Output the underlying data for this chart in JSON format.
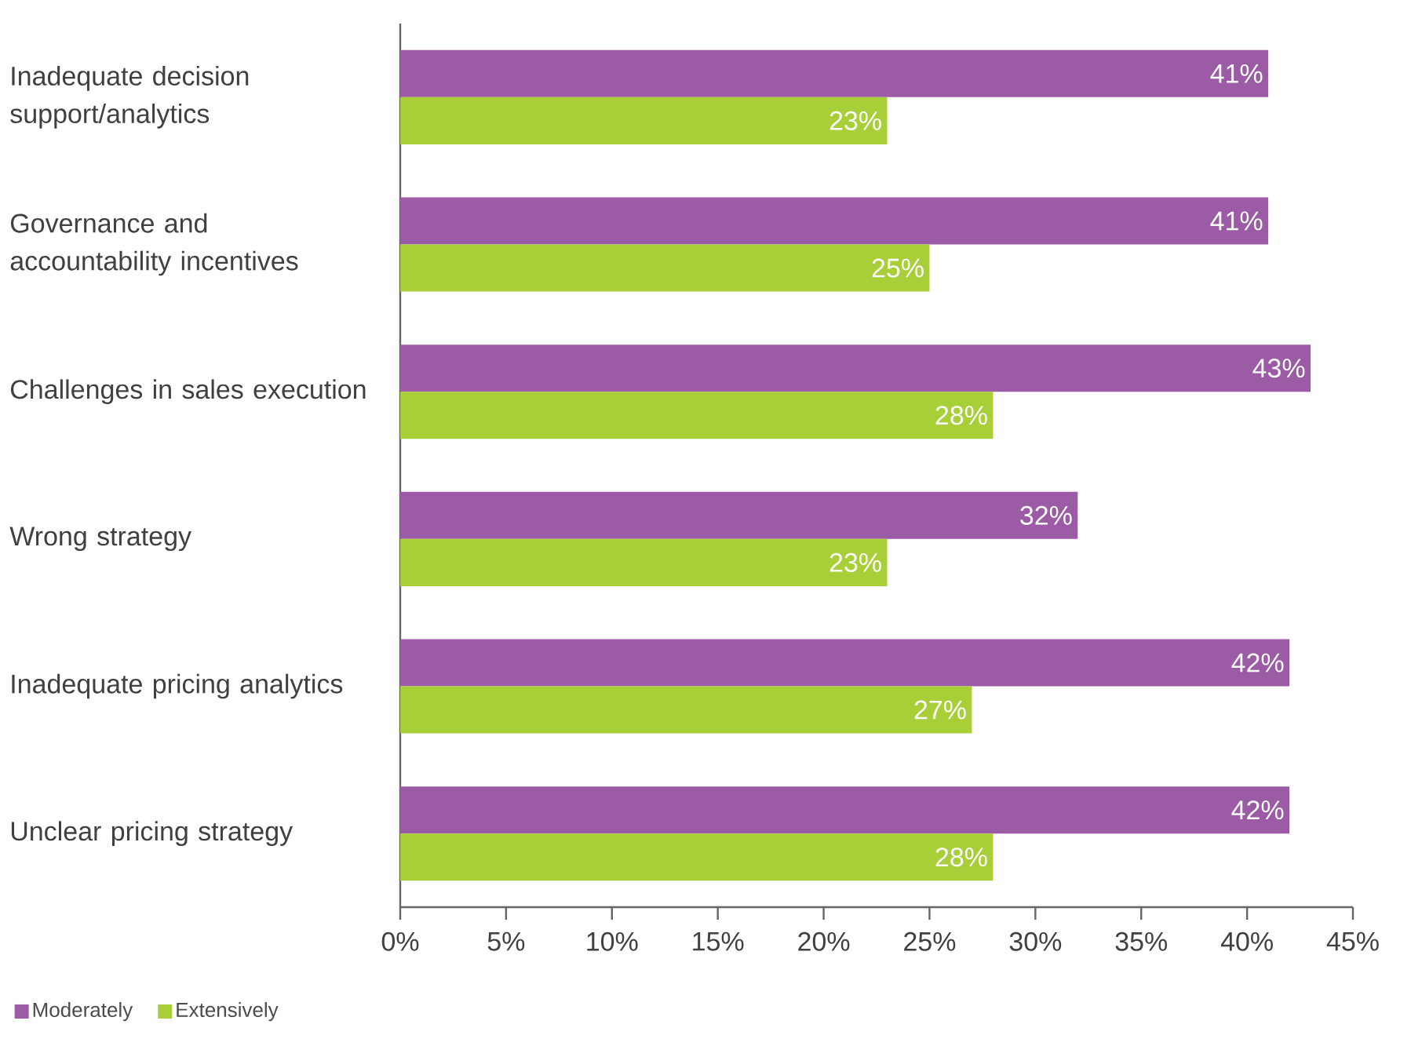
{
  "chart_data": {
    "type": "bar",
    "orientation": "horizontal",
    "categories": [
      "Inadequate decision support/analytics",
      "Governance and accountability incentives",
      "Challenges in sales execution",
      "Wrong strategy",
      "Inadequate pricing analytics",
      "Unclear pricing strategy"
    ],
    "series": [
      {
        "name": "Moderately",
        "color": "#9b5ba5",
        "values": [
          41,
          41,
          43,
          32,
          42,
          42
        ],
        "value_labels": [
          "41%",
          "41%",
          "43%",
          "32%",
          "42%",
          "42%"
        ]
      },
      {
        "name": "Extensively",
        "color": "#a9cf38",
        "values": [
          23,
          25,
          28,
          23,
          27,
          28
        ],
        "value_labels": [
          "23%",
          "25%",
          "28%",
          "23%",
          "27%",
          "28%"
        ]
      }
    ],
    "xlim": [
      0,
      45
    ],
    "xticks": [
      {
        "value": 0,
        "label": "0%"
      },
      {
        "value": 5,
        "label": "5%"
      },
      {
        "value": 10,
        "label": "10%"
      },
      {
        "value": 15,
        "label": "15%"
      },
      {
        "value": 20,
        "label": "20%"
      },
      {
        "value": 25,
        "label": "25%"
      },
      {
        "value": 30,
        "label": "30%"
      },
      {
        "value": 35,
        "label": "35%"
      },
      {
        "value": 40,
        "label": "40%"
      },
      {
        "value": 45,
        "label": "45%"
      }
    ],
    "grid": false,
    "legend": "bottom left"
  }
}
